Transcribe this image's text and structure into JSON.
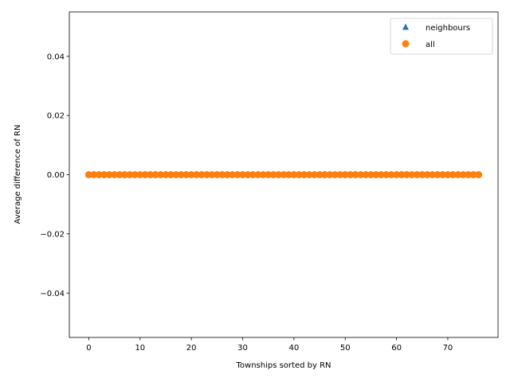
{
  "chart_data": {
    "type": "scatter",
    "title": "",
    "xlabel": "Townships sorted by RN",
    "ylabel": "Average difference of RN",
    "xlim": [
      -3.8,
      79.8
    ],
    "ylim": [
      -0.055,
      0.055
    ],
    "x_ticks": [
      0,
      10,
      20,
      30,
      40,
      50,
      60,
      70
    ],
    "y_ticks": [
      -0.04,
      -0.02,
      0.0,
      0.02,
      0.04
    ],
    "y_tick_labels": [
      "−0.04",
      "−0.02",
      "0.00",
      "0.02",
      "0.04"
    ],
    "grid": false,
    "legend_position": "top-right",
    "n_points": 77,
    "series": [
      {
        "name": "neighbours",
        "marker": "triangle",
        "color": "#1f77b4",
        "y_value": 0
      },
      {
        "name": "all",
        "marker": "circle",
        "color": "#ff7f0e",
        "y_value": 0
      }
    ]
  }
}
